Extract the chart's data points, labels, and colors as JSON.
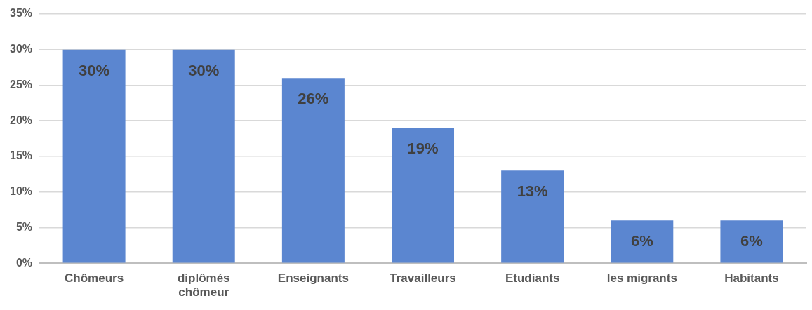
{
  "chart_data": {
    "type": "bar",
    "categories": [
      "Chômeurs",
      "diplômés chômeur",
      "Enseignants",
      "Travailleurs",
      "Etudiants",
      "les migrants",
      "Habitants"
    ],
    "values": [
      30,
      30,
      26,
      19,
      13,
      6,
      6
    ],
    "color": "#5b86d0",
    "value_labels": [
      "30%",
      "30%",
      "26%",
      "19%",
      "13%",
      "6%",
      "6%"
    ],
    "ylim": [
      0,
      35
    ],
    "yticks": [
      {
        "value": 0,
        "label": "0%"
      },
      {
        "value": 5,
        "label": "5%"
      },
      {
        "value": 10,
        "label": "10%"
      },
      {
        "value": 15,
        "label": "15%"
      },
      {
        "value": 20,
        "label": "20%"
      },
      {
        "value": 25,
        "label": "25%"
      },
      {
        "value": 30,
        "label": "30%"
      },
      {
        "value": 35,
        "label": "35%"
      }
    ],
    "grid": "y",
    "legend": false
  }
}
